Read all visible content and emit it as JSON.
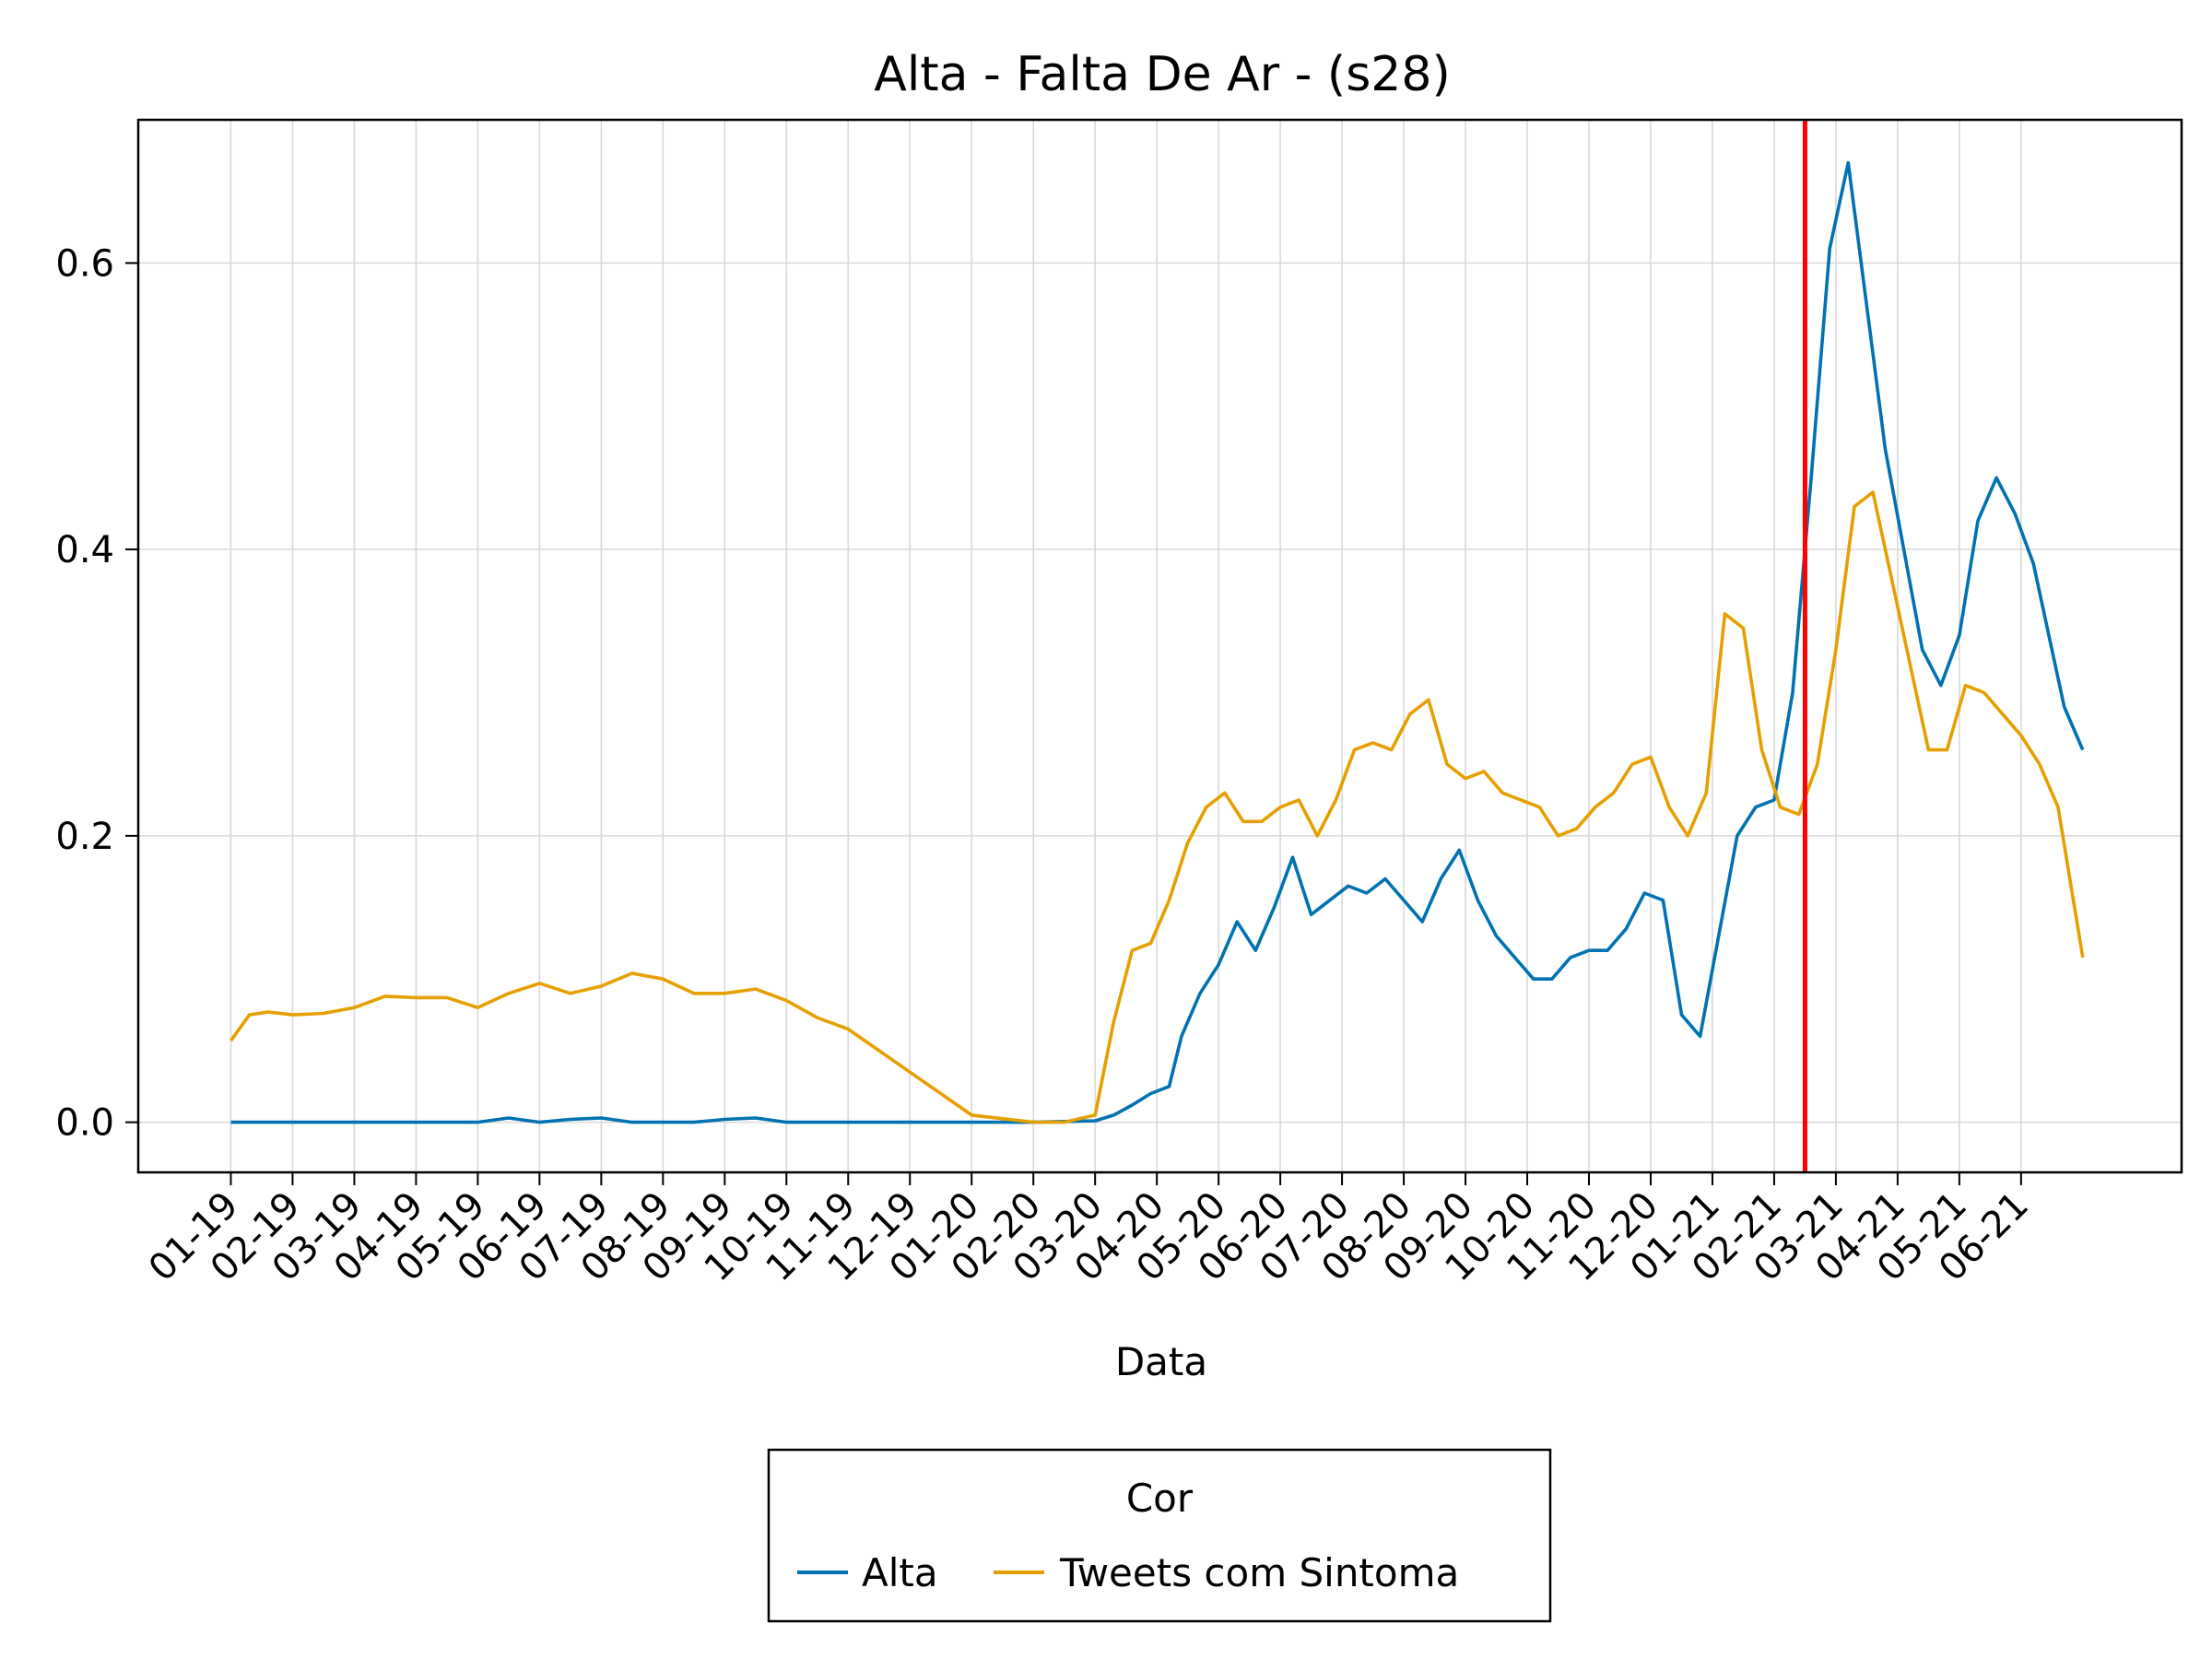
{
  "chart_data": {
    "type": "line",
    "title": "Alta - Falta De Ar - (s28)",
    "xlabel": "Data",
    "ylabel": "",
    "x_tick_labels": [
      "01-19",
      "02-19",
      "03-19",
      "04-19",
      "05-19",
      "06-19",
      "07-19",
      "08-19",
      "09-19",
      "10-19",
      "11-19",
      "12-19",
      "01-20",
      "02-20",
      "03-20",
      "04-20",
      "05-20",
      "06-20",
      "07-20",
      "08-20",
      "09-20",
      "10-20",
      "11-20",
      "12-20",
      "01-21",
      "02-21",
      "03-21",
      "04-21",
      "05-21",
      "06-21"
    ],
    "y_ticks": [
      0.0,
      0.2,
      0.4,
      0.6
    ],
    "y_tick_labels": [
      "0.0",
      "0.2",
      "0.4",
      "0.6"
    ],
    "ylim": [
      -0.035,
      0.7
    ],
    "xlim": [
      -1.5,
      31.6
    ],
    "grid": true,
    "reference_line": {
      "x": 25.5,
      "color": "#ff0000"
    },
    "legend": {
      "title": "Cor",
      "position": "bottom-center"
    },
    "series": [
      {
        "name": "Alta",
        "color": "#0072b2",
        "x": [
          0,
          1,
          2,
          3,
          4,
          4.5,
          5,
          5.5,
          6,
          6.5,
          7,
          7.5,
          8,
          8.5,
          9,
          9.5,
          10,
          11,
          12,
          13,
          14,
          14.3,
          14.6,
          14.9,
          15.2,
          15.4,
          15.7,
          16,
          16.3,
          16.6,
          16.9,
          17.2,
          17.5,
          17.8,
          18.1,
          18.4,
          18.7,
          19,
          19.3,
          19.6,
          19.9,
          20.2,
          20.5,
          20.8,
          21.1,
          21.4,
          21.7,
          22,
          22.3,
          22.6,
          22.9,
          23.2,
          23.5,
          23.8,
          24.1,
          24.4,
          24.7,
          25,
          25.3,
          25.6,
          25.9,
          26.2,
          26.5,
          26.8,
          27.1,
          27.4,
          27.7,
          28,
          28.3,
          28.6,
          28.9,
          29.2,
          29.5,
          29.7,
          30
        ],
        "values": [
          0,
          0,
          0,
          0,
          0,
          0.003,
          0,
          0.002,
          0.003,
          0,
          0,
          0,
          0.002,
          0.003,
          0,
          0,
          0,
          0,
          0,
          0,
          0.001,
          0.005,
          0.012,
          0.02,
          0.025,
          0.06,
          0.09,
          0.11,
          0.14,
          0.12,
          0.15,
          0.185,
          0.145,
          0.155,
          0.165,
          0.16,
          0.17,
          0.155,
          0.14,
          0.17,
          0.19,
          0.155,
          0.13,
          0.115,
          0.1,
          0.1,
          0.115,
          0.12,
          0.12,
          0.135,
          0.16,
          0.155,
          0.075,
          0.06,
          0.13,
          0.2,
          0.22,
          0.225,
          0.3,
          0.45,
          0.61,
          0.67,
          0.57,
          0.47,
          0.4,
          0.33,
          0.305,
          0.34,
          0.42,
          0.45,
          0.425,
          0.39,
          0.33,
          0.29,
          0.26
        ]
      },
      {
        "name": "Tweets com Sintoma",
        "color": "#e69f00",
        "x": [
          0,
          0.3,
          0.6,
          1,
          1.5,
          2,
          2.5,
          3,
          3.5,
          4,
          4.5,
          5,
          5.5,
          6,
          6.5,
          7,
          7.5,
          8,
          8.5,
          9,
          9.5,
          10,
          10.5,
          11,
          11.5,
          12,
          13,
          13.5,
          14,
          14.3,
          14.6,
          14.9,
          15.2,
          15.5,
          15.8,
          16.1,
          16.4,
          16.7,
          17,
          17.3,
          17.6,
          17.9,
          18.2,
          18.5,
          18.8,
          19.1,
          19.4,
          19.7,
          20,
          20.3,
          20.6,
          20.9,
          21.2,
          21.5,
          21.8,
          22.1,
          22.4,
          22.7,
          23,
          23.3,
          23.6,
          23.9,
          24.2,
          24.5,
          24.8,
          25.1,
          25.4,
          25.7,
          26,
          26.3,
          26.6,
          26.9,
          27.2,
          27.5,
          27.8,
          28.1,
          28.4,
          28.7,
          29,
          29.3,
          29.6,
          30
        ],
        "values": [
          0.057,
          0.075,
          0.077,
          0.075,
          0.076,
          0.08,
          0.088,
          0.087,
          0.087,
          0.08,
          0.09,
          0.097,
          0.09,
          0.095,
          0.104,
          0.1,
          0.09,
          0.09,
          0.093,
          0.085,
          0.073,
          0.065,
          0.05,
          0.035,
          0.02,
          0.005,
          0,
          0,
          0.005,
          0.07,
          0.12,
          0.125,
          0.155,
          0.195,
          0.22,
          0.23,
          0.21,
          0.21,
          0.22,
          0.225,
          0.2,
          0.225,
          0.26,
          0.265,
          0.26,
          0.285,
          0.295,
          0.25,
          0.24,
          0.245,
          0.23,
          0.225,
          0.22,
          0.2,
          0.205,
          0.22,
          0.23,
          0.25,
          0.255,
          0.22,
          0.2,
          0.23,
          0.355,
          0.345,
          0.26,
          0.22,
          0.215,
          0.25,
          0.33,
          0.43,
          0.44,
          0.38,
          0.32,
          0.26,
          0.26,
          0.305,
          0.3,
          0.285,
          0.27,
          0.25,
          0.22,
          0.115
        ]
      }
    ]
  }
}
